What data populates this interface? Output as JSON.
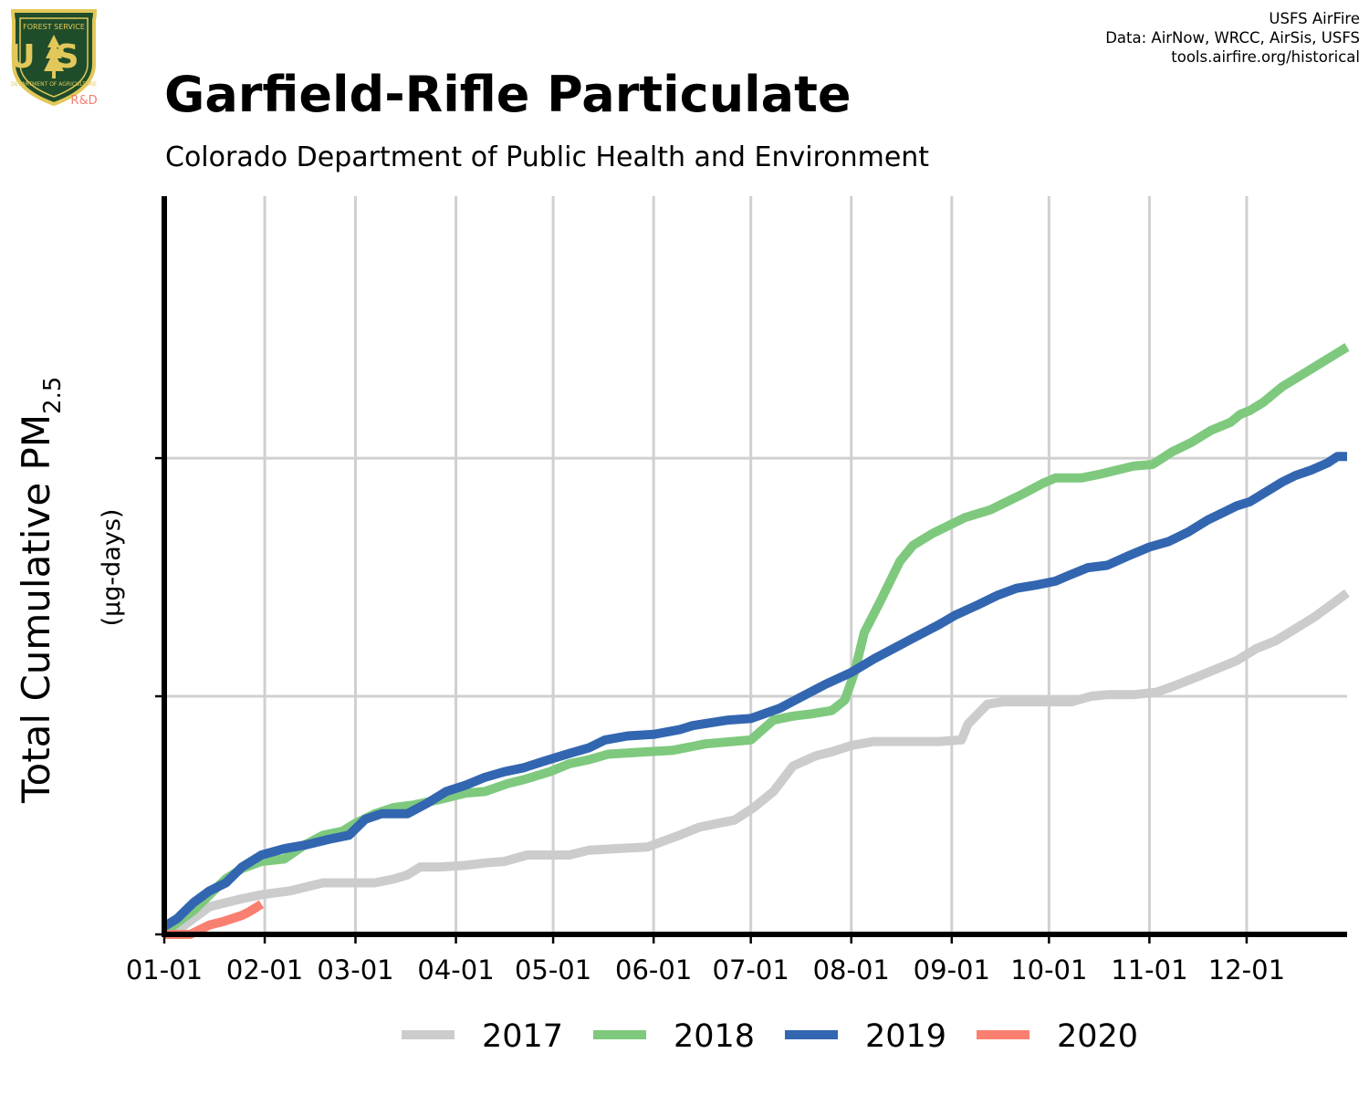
{
  "branding": {
    "logo_text_top": "FOREST SERVICE",
    "logo_text_main": "US",
    "logo_text_bottom": "DEPARTMENT OF AGRICULTURE",
    "logo_tag": "R&D",
    "logo_colors": {
      "field": "#1f4d2b",
      "border": "#e2c85a",
      "tree": "#e2c85a",
      "tag": "#f08070"
    }
  },
  "credits": {
    "line1": "USFS AirFire",
    "line2": "Data: AirNow, WRCC, AirSis, USFS",
    "line3": "tools.airfire.org/historical"
  },
  "chart_data": {
    "type": "line",
    "title": "Garfield-Rifle Particulate",
    "subtitle": "Colorado Department of Public Health and Environment",
    "ylabel_main": "Total Cumulative PM",
    "ylabel_sub": "2.5",
    "ylabel_units": "(µg-days)",
    "x_unit": "day of year",
    "xlim": [
      1,
      366
    ],
    "ylim": [
      0,
      930
    ],
    "y_gridlines": [
      0,
      300,
      600
    ],
    "x_ticks": [
      {
        "day": 1,
        "label": "01-01"
      },
      {
        "day": 32,
        "label": "02-01"
      },
      {
        "day": 60,
        "label": "03-01"
      },
      {
        "day": 91,
        "label": "04-01"
      },
      {
        "day": 121,
        "label": "05-01"
      },
      {
        "day": 152,
        "label": "06-01"
      },
      {
        "day": 182,
        "label": "07-01"
      },
      {
        "day": 213,
        "label": "08-01"
      },
      {
        "day": 244,
        "label": "09-01"
      },
      {
        "day": 274,
        "label": "10-01"
      },
      {
        "day": 305,
        "label": "11-01"
      },
      {
        "day": 335,
        "label": "12-01"
      }
    ],
    "grid": true,
    "legend_position": "bottom",
    "series": [
      {
        "name": "2017",
        "color": "#cccccc",
        "points": [
          [
            1,
            0
          ],
          [
            5,
            5
          ],
          [
            10,
            20
          ],
          [
            15,
            35
          ],
          [
            20,
            40
          ],
          [
            25,
            45
          ],
          [
            31,
            50
          ],
          [
            40,
            55
          ],
          [
            45,
            60
          ],
          [
            50,
            65
          ],
          [
            60,
            65
          ],
          [
            66,
            65
          ],
          [
            72,
            70
          ],
          [
            76,
            75
          ],
          [
            80,
            85
          ],
          [
            86,
            85
          ],
          [
            94,
            87
          ],
          [
            100,
            90
          ],
          [
            106,
            92
          ],
          [
            113,
            100
          ],
          [
            120,
            100
          ],
          [
            126,
            100
          ],
          [
            132,
            106
          ],
          [
            140,
            108
          ],
          [
            150,
            110
          ],
          [
            160,
            125
          ],
          [
            166,
            135
          ],
          [
            172,
            140
          ],
          [
            177,
            144
          ],
          [
            183,
            160
          ],
          [
            189,
            180
          ],
          [
            195,
            212
          ],
          [
            202,
            225
          ],
          [
            207,
            230
          ],
          [
            213,
            238
          ],
          [
            220,
            243
          ],
          [
            240,
            243
          ],
          [
            247,
            245
          ],
          [
            249,
            265
          ],
          [
            255,
            290
          ],
          [
            260,
            293
          ],
          [
            270,
            293
          ],
          [
            281,
            293
          ],
          [
            287,
            300
          ],
          [
            292,
            302
          ],
          [
            300,
            302
          ],
          [
            307,
            305
          ],
          [
            312,
            312
          ],
          [
            320,
            325
          ],
          [
            326,
            335
          ],
          [
            332,
            345
          ],
          [
            338,
            360
          ],
          [
            344,
            370
          ],
          [
            350,
            385
          ],
          [
            356,
            400
          ],
          [
            361,
            415
          ],
          [
            366,
            430
          ]
        ]
      },
      {
        "name": "2018",
        "color": "#7ec97e",
        "points": [
          [
            1,
            2
          ],
          [
            5,
            15
          ],
          [
            10,
            30
          ],
          [
            15,
            50
          ],
          [
            20,
            70
          ],
          [
            25,
            83
          ],
          [
            31,
            92
          ],
          [
            38,
            95
          ],
          [
            44,
            112
          ],
          [
            50,
            125
          ],
          [
            56,
            130
          ],
          [
            60,
            140
          ],
          [
            66,
            152
          ],
          [
            72,
            160
          ],
          [
            78,
            163
          ],
          [
            86,
            170
          ],
          [
            94,
            178
          ],
          [
            100,
            180
          ],
          [
            107,
            190
          ],
          [
            112,
            195
          ],
          [
            120,
            205
          ],
          [
            126,
            215
          ],
          [
            132,
            220
          ],
          [
            138,
            227
          ],
          [
            150,
            230
          ],
          [
            158,
            232
          ],
          [
            168,
            240
          ],
          [
            182,
            245
          ],
          [
            189,
            270
          ],
          [
            195,
            275
          ],
          [
            201,
            278
          ],
          [
            207,
            282
          ],
          [
            211,
            295
          ],
          [
            214,
            330
          ],
          [
            217,
            380
          ],
          [
            222,
            420
          ],
          [
            228,
            470
          ],
          [
            232,
            490
          ],
          [
            238,
            505
          ],
          [
            243,
            515
          ],
          [
            248,
            525
          ],
          [
            256,
            535
          ],
          [
            260,
            543
          ],
          [
            266,
            555
          ],
          [
            272,
            568
          ],
          [
            276,
            575
          ],
          [
            284,
            575
          ],
          [
            290,
            580
          ],
          [
            300,
            590
          ],
          [
            306,
            592
          ],
          [
            312,
            608
          ],
          [
            318,
            620
          ],
          [
            324,
            635
          ],
          [
            330,
            645
          ],
          [
            333,
            655
          ],
          [
            336,
            660
          ],
          [
            340,
            670
          ],
          [
            346,
            690
          ],
          [
            352,
            705
          ],
          [
            358,
            720
          ],
          [
            362,
            730
          ],
          [
            366,
            740
          ]
        ]
      },
      {
        "name": "2019",
        "color": "#3366b0",
        "points": [
          [
            1,
            10
          ],
          [
            5,
            20
          ],
          [
            10,
            40
          ],
          [
            15,
            55
          ],
          [
            20,
            65
          ],
          [
            25,
            85
          ],
          [
            31,
            100
          ],
          [
            38,
            108
          ],
          [
            45,
            113
          ],
          [
            52,
            120
          ],
          [
            58,
            125
          ],
          [
            63,
            145
          ],
          [
            68,
            152
          ],
          [
            76,
            152
          ],
          [
            82,
            165
          ],
          [
            88,
            180
          ],
          [
            94,
            188
          ],
          [
            100,
            198
          ],
          [
            106,
            205
          ],
          [
            112,
            210
          ],
          [
            118,
            218
          ],
          [
            126,
            228
          ],
          [
            132,
            235
          ],
          [
            137,
            245
          ],
          [
            144,
            250
          ],
          [
            152,
            252
          ],
          [
            160,
            258
          ],
          [
            164,
            263
          ],
          [
            175,
            270
          ],
          [
            182,
            272
          ],
          [
            191,
            285
          ],
          [
            197,
            298
          ],
          [
            205,
            315
          ],
          [
            213,
            330
          ],
          [
            220,
            347
          ],
          [
            226,
            360
          ],
          [
            232,
            373
          ],
          [
            240,
            390
          ],
          [
            245,
            402
          ],
          [
            252,
            415
          ],
          [
            258,
            427
          ],
          [
            264,
            436
          ],
          [
            270,
            440
          ],
          [
            276,
            445
          ],
          [
            280,
            452
          ],
          [
            286,
            462
          ],
          [
            292,
            465
          ],
          [
            298,
            476
          ],
          [
            305,
            488
          ],
          [
            311,
            495
          ],
          [
            317,
            507
          ],
          [
            323,
            522
          ],
          [
            328,
            532
          ],
          [
            332,
            540
          ],
          [
            336,
            545
          ],
          [
            340,
            555
          ],
          [
            346,
            570
          ],
          [
            350,
            578
          ],
          [
            355,
            585
          ],
          [
            360,
            594
          ],
          [
            363,
            602
          ],
          [
            366,
            602
          ]
        ]
      },
      {
        "name": "2020",
        "color": "#f98070",
        "points": [
          [
            1,
            0
          ],
          [
            5,
            0
          ],
          [
            9,
            0
          ],
          [
            12,
            6
          ],
          [
            15,
            12
          ],
          [
            19,
            16
          ],
          [
            22,
            20
          ],
          [
            25,
            24
          ],
          [
            27,
            28
          ],
          [
            29,
            33
          ],
          [
            31,
            38
          ]
        ]
      }
    ]
  }
}
